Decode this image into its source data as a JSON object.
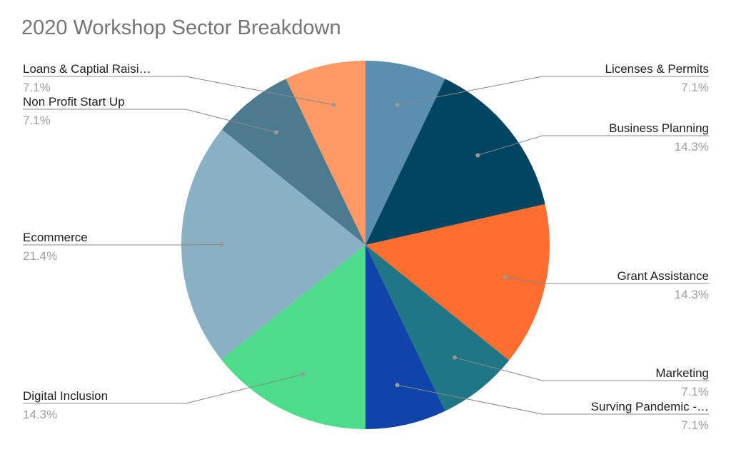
{
  "chart_data": {
    "type": "pie",
    "title": "2020 Workshop Sector Breakdown",
    "categories": [
      "Licenses & Permits",
      "Business Planning",
      "Grant Assistance",
      "Marketing",
      "Surving Pandemic -…",
      "Digital Inclusion",
      "Ecommerce",
      "Non Profit Start Up",
      "Loans & Captial Raisi…"
    ],
    "values": [
      7.1,
      14.3,
      14.3,
      7.1,
      7.1,
      14.3,
      21.4,
      7.1,
      7.1
    ],
    "value_labels": [
      "7.1%",
      "14.3%",
      "14.3%",
      "7.1%",
      "7.1%",
      "14.3%",
      "21.4%",
      "7.1%",
      "7.1%"
    ],
    "colors": [
      "#5b8fb0",
      "#024560",
      "#ff6d2f",
      "#1f7785",
      "#0f44aa",
      "#4ddc89",
      "#8ab0c4",
      "#4d7a8f",
      "#ff9966"
    ]
  }
}
